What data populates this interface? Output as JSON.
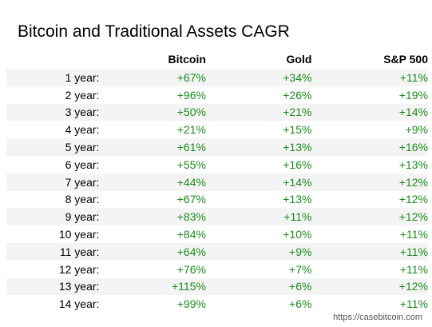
{
  "title": "Bitcoin and Traditional Assets CAGR",
  "source": "https://casebitcoin.com",
  "colors": {
    "positive": "#1a8a1a",
    "row_shade": "#f4f4f4"
  },
  "chart_data": {
    "type": "table",
    "title": "Bitcoin and Traditional Assets CAGR",
    "columns": [
      "",
      "Bitcoin",
      "Gold",
      "S&P 500"
    ],
    "rows": [
      {
        "label": "1 year:",
        "bitcoin": "+67%",
        "gold": "+34%",
        "sp500": "+11%"
      },
      {
        "label": "2 year:",
        "bitcoin": "+96%",
        "gold": "+26%",
        "sp500": "+19%"
      },
      {
        "label": "3 year:",
        "bitcoin": "+50%",
        "gold": "+21%",
        "sp500": "+14%"
      },
      {
        "label": "4 year:",
        "bitcoin": "+21%",
        "gold": "+15%",
        "sp500": "+9%"
      },
      {
        "label": "5 year:",
        "bitcoin": "+61%",
        "gold": "+13%",
        "sp500": "+16%"
      },
      {
        "label": "6 year:",
        "bitcoin": "+55%",
        "gold": "+16%",
        "sp500": "+13%"
      },
      {
        "label": "7 year:",
        "bitcoin": "+44%",
        "gold": "+14%",
        "sp500": "+12%"
      },
      {
        "label": "8 year:",
        "bitcoin": "+67%",
        "gold": "+13%",
        "sp500": "+12%"
      },
      {
        "label": "9 year:",
        "bitcoin": "+83%",
        "gold": "+11%",
        "sp500": "+12%"
      },
      {
        "label": "10 year:",
        "bitcoin": "+84%",
        "gold": "+10%",
        "sp500": "+11%"
      },
      {
        "label": "11 year:",
        "bitcoin": "+64%",
        "gold": "+9%",
        "sp500": "+11%"
      },
      {
        "label": "12 year:",
        "bitcoin": "+76%",
        "gold": "+7%",
        "sp500": "+11%"
      },
      {
        "label": "13 year:",
        "bitcoin": "+115%",
        "gold": "+6%",
        "sp500": "+12%"
      },
      {
        "label": "14 year:",
        "bitcoin": "+99%",
        "gold": "+6%",
        "sp500": "+11%"
      }
    ]
  }
}
